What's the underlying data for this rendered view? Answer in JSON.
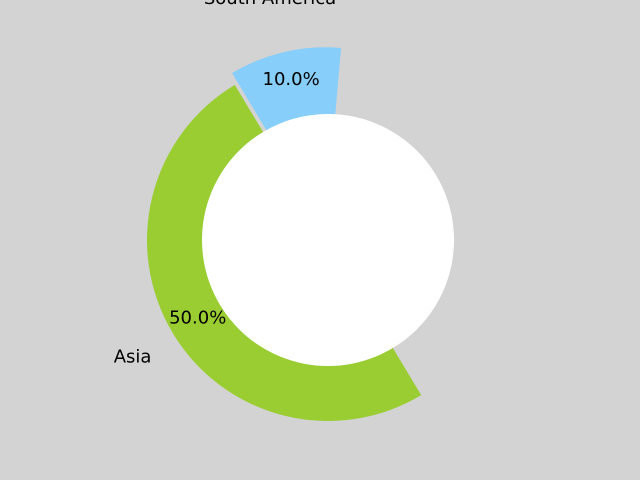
{
  "chart_data": {
    "type": "pie",
    "title": "",
    "background_color": "#d3d3d3",
    "hole_color": "#ffffff",
    "slices": [
      {
        "label": "South America",
        "value": 10.0,
        "pct_label": "10.0%",
        "color": "#87cefa"
      },
      {
        "label": "Asia",
        "value": 50.0,
        "pct_label": "50.0%",
        "color": "#9acd32"
      }
    ]
  }
}
